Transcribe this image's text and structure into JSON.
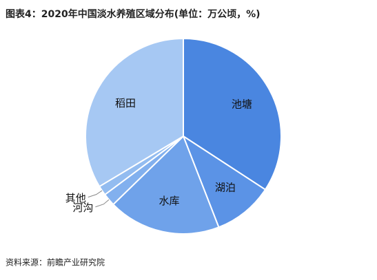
{
  "chart_data": {
    "type": "pie",
    "title": "图表4：2020年中国淡水养殖区域分布(单位：万公顷，%)",
    "categories": [
      "池塘",
      "湖泊",
      "水库",
      "河沟",
      "其他",
      "稻田"
    ],
    "values": [
      34.2,
      9.9,
      18.6,
      2.1,
      1.6,
      33.6
    ],
    "colors": [
      "#4a86e0",
      "#5b93e6",
      "#6fa2ea",
      "#82b0ee",
      "#93bcf0",
      "#a6c8f3"
    ],
    "source": "资料来源：前瞻产业研究院"
  }
}
